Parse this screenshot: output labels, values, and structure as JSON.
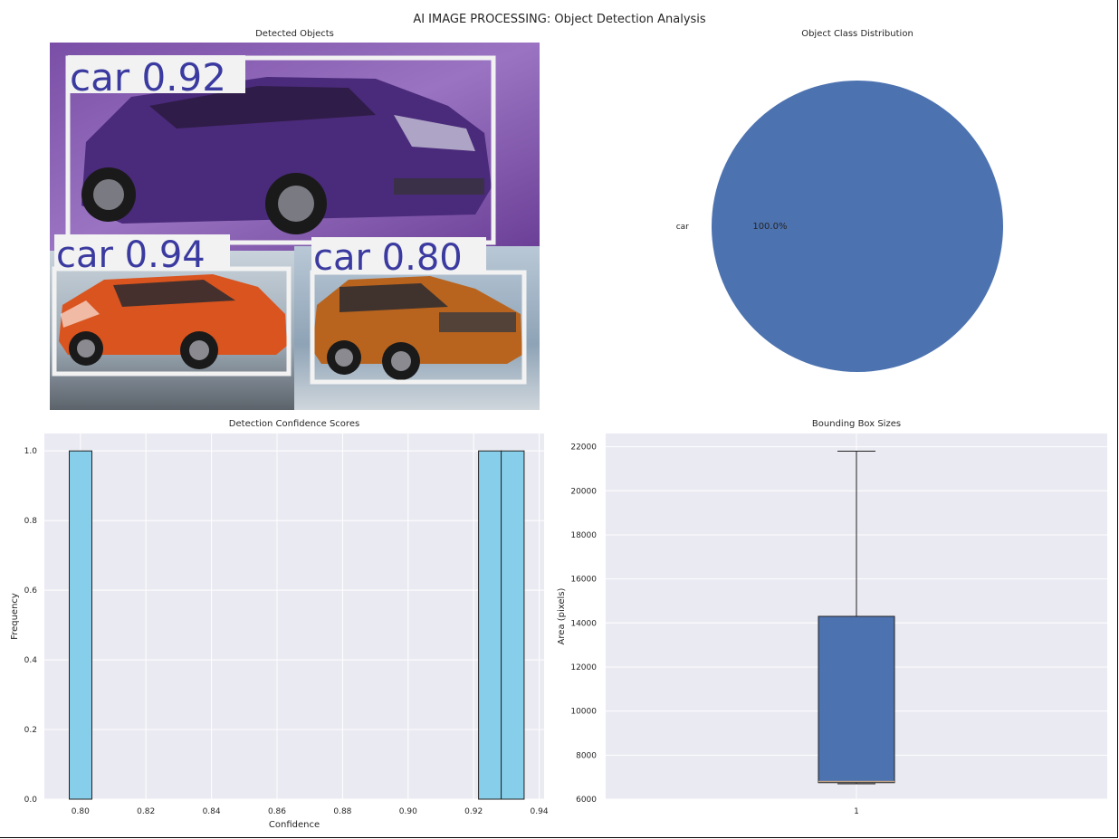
{
  "figure": {
    "suptitle": "AI IMAGE PROCESSING: Object Detection Analysis"
  },
  "image_panel": {
    "title": "Detected Objects",
    "detections": [
      {
        "label": "car 0.92",
        "body_color": "#4a2a7a"
      },
      {
        "label": "car 0.94",
        "body_color": "#d9541e"
      },
      {
        "label": "car 0.80",
        "body_color": "#b8641e"
      }
    ]
  },
  "colors": {
    "pie": "#4c72b0",
    "histogram": "#87ceeb",
    "box": "#4c72b0",
    "axes_bg": "#eaeaf2",
    "detection_box": "#f2f2f2",
    "detection_label": "#3a3aa0"
  },
  "chart_data": [
    {
      "type": "pie",
      "title": "Object Class Distribution",
      "slices": [
        {
          "label": "car",
          "value": 100.0,
          "pct_label": "100.0%"
        }
      ]
    },
    {
      "type": "bar",
      "title": "Detection Confidence Scores",
      "xlabel": "Confidence",
      "ylabel": "Frequency",
      "bins": [
        {
          "x0": 0.7966,
          "x1": 0.8035,
          "count": 1
        },
        {
          "x0": 0.9215,
          "x1": 0.9284,
          "count": 1
        },
        {
          "x0": 0.9284,
          "x1": 0.9354,
          "count": 1
        }
      ],
      "xlim": [
        0.789,
        0.9415
      ],
      "ylim": [
        0,
        1.05
      ],
      "xticks": [
        0.8,
        0.82,
        0.84,
        0.86,
        0.88,
        0.9,
        0.92,
        0.94
      ],
      "xtick_labels": [
        "0.80",
        "0.82",
        "0.84",
        "0.86",
        "0.88",
        "0.90",
        "0.92",
        "0.94"
      ],
      "yticks": [
        0.0,
        0.2,
        0.4,
        0.6,
        0.8,
        1.0
      ],
      "ytick_labels": [
        "0.0",
        "0.2",
        "0.4",
        "0.6",
        "0.8",
        "1.0"
      ],
      "grid": true
    },
    {
      "type": "box",
      "title": "Bounding Box Sizes",
      "ylabel": "Area (pixels)",
      "categories": [
        "1"
      ],
      "boxes": [
        {
          "whisker_low": 6700,
          "q1": 6750,
          "median": 6800,
          "q3": 14300,
          "whisker_high": 21800
        }
      ],
      "ylim": [
        6000,
        22600
      ],
      "yticks": [
        6000,
        8000,
        10000,
        12000,
        14000,
        16000,
        18000,
        20000,
        22000
      ],
      "ytick_labels": [
        "6000",
        "8000",
        "10000",
        "12000",
        "14000",
        "16000",
        "18000",
        "20000",
        "22000"
      ],
      "grid": true
    }
  ]
}
